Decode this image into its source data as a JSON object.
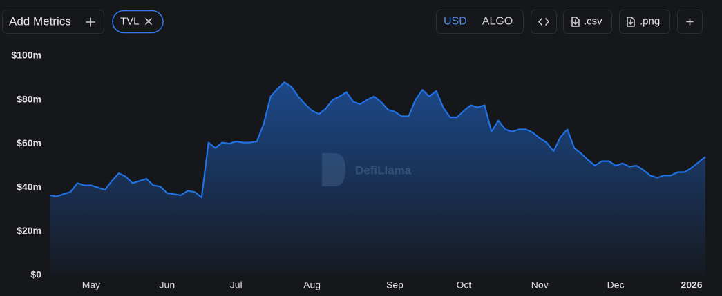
{
  "toolbar": {
    "add_metrics": "Add Metrics",
    "metric": "TVL",
    "currencies": [
      "USD",
      "ALGO"
    ],
    "active_currency_index": 0,
    "downloads": [
      ".csv",
      ".png"
    ]
  },
  "chart_data": {
    "type": "area",
    "watermark": "DefiLlama",
    "categories": [
      null,
      null,
      null,
      null,
      null,
      null,
      "May",
      null,
      null,
      null,
      null,
      null,
      null,
      null,
      null,
      null,
      null,
      "Jun",
      null,
      null,
      null,
      null,
      null,
      null,
      null,
      null,
      null,
      "Jul",
      null,
      null,
      null,
      null,
      null,
      null,
      null,
      null,
      null,
      null,
      "Aug",
      null,
      null,
      null,
      null,
      null,
      null,
      null,
      null,
      null,
      null,
      null,
      "Sep",
      null,
      null,
      null,
      null,
      null,
      null,
      null,
      null,
      null,
      "Oct",
      null,
      null,
      null,
      null,
      null,
      null,
      null,
      null,
      null,
      null,
      "Nov",
      null,
      null,
      null,
      null,
      null,
      null,
      null,
      null,
      null,
      null,
      "Dec",
      null,
      null,
      null,
      null,
      null,
      null,
      null,
      null,
      null,
      null,
      "2026",
      null,
      null
    ],
    "values": [
      36.5,
      36,
      37,
      38,
      42,
      41,
      41,
      40,
      39,
      43,
      46.5,
      45,
      42,
      43,
      44,
      41,
      40.5,
      37.5,
      37,
      36.5,
      38.5,
      38,
      35.5,
      60.5,
      58,
      60.5,
      60,
      61,
      60.5,
      60.5,
      61,
      69,
      81.5,
      85,
      88,
      86,
      81.5,
      78,
      75,
      73.5,
      76,
      80,
      81.5,
      83.5,
      79,
      78,
      80,
      81.5,
      79,
      75.5,
      74.5,
      72.5,
      72.5,
      80,
      84.5,
      81.5,
      84,
      76.5,
      72,
      72,
      75,
      77.5,
      76.5,
      77.5,
      65.5,
      70.5,
      66.5,
      65.5,
      66.5,
      66.5,
      65,
      62.5,
      60.5,
      56.5,
      63,
      66.5,
      58,
      55.5,
      52.5,
      50,
      52,
      52,
      50,
      51,
      49.5,
      50,
      48,
      45.5,
      44.5,
      45.5,
      45.5,
      47,
      47,
      49,
      51.5,
      54
    ],
    "color": "#2172e5",
    "ylim": [
      0,
      100
    ],
    "yticks": [
      {
        "value": 0,
        "label": "$0"
      },
      {
        "value": 20,
        "label": "$20m"
      },
      {
        "value": 40,
        "label": "$40m"
      },
      {
        "value": 60,
        "label": "$60m"
      },
      {
        "value": 80,
        "label": "$80m"
      },
      {
        "value": 100,
        "label": "$100m"
      }
    ],
    "grid": false
  }
}
